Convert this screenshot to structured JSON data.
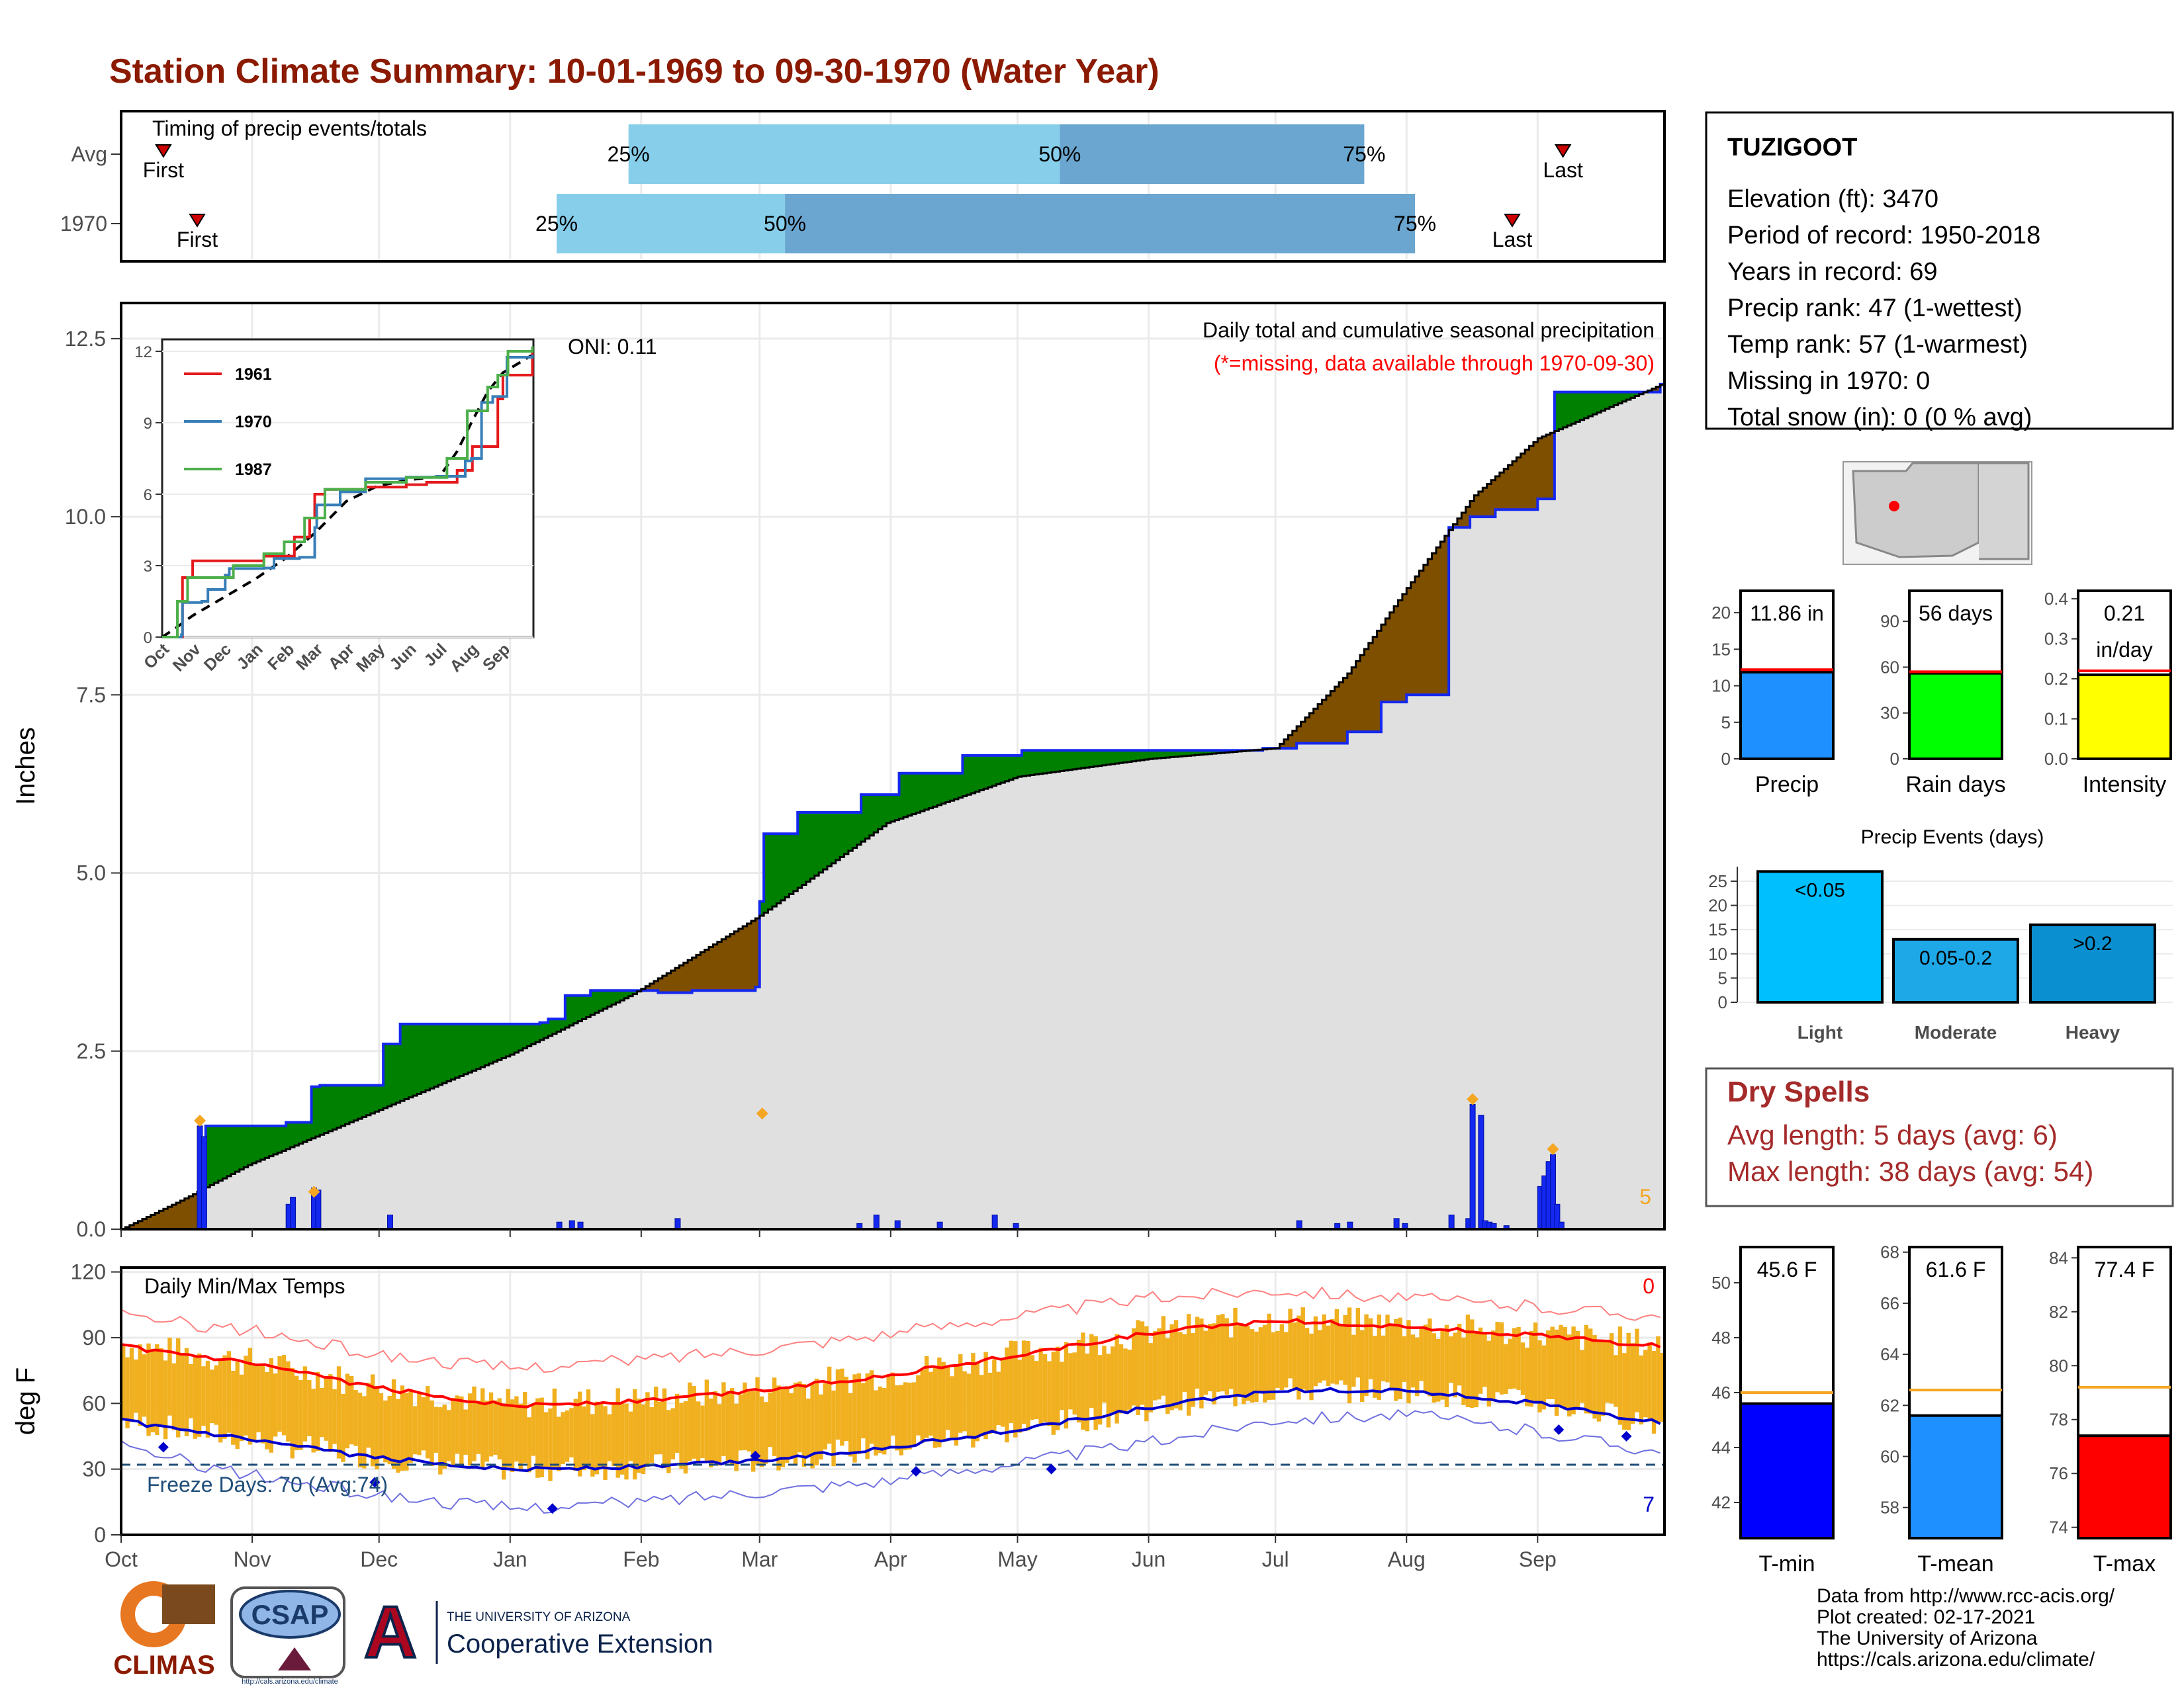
{
  "title": "Station Climate Summary: 10-01-1969 to 09-30-1970 (Water Year)",
  "colors": {
    "title": "#8B1A00",
    "cum_fill": "#e0e0e0",
    "wetter": "#008000",
    "drier": "#7f4f00",
    "bars": "#1428f0",
    "peak": "#f5a623",
    "tmax_avg": "#ff0000",
    "tmin_avg": "#0000cc",
    "temp_bars": "#f0b020",
    "quart_light": "#87ceeb",
    "quart_dark": "#6aa6d0",
    "drytext": "#a52a2a"
  },
  "timing": {
    "title": "Timing of precip events/totals",
    "rows": [
      {
        "label": "Avg",
        "first_label": "First",
        "last_label": "Last",
        "first_day": 10,
        "last_day": 341,
        "q25_day": 120,
        "q50_day": 222,
        "q75_day": 294,
        "q25_label": "25%",
        "q50_label": "50%",
        "q75_label": "75%"
      },
      {
        "label": "1970",
        "first_label": "First",
        "last_label": "Last",
        "first_day": 18,
        "last_day": 329,
        "q25_day": 103,
        "q50_day": 157,
        "q75_day": 306,
        "q25_label": "25%",
        "q50_label": "50%",
        "q75_label": "75%"
      }
    ]
  },
  "precip_panel": {
    "ylabel": "Inches",
    "y_ticks": [
      "0.0",
      "2.5",
      "5.0",
      "7.5",
      "10.0",
      "12.5"
    ],
    "ylim": [
      0,
      13
    ],
    "note1": "Daily total and cumulative seasonal precipitation",
    "note2": "(*=missing, data available through 1970-09-30)",
    "oni": "ONI: 0.11",
    "corner_count": "5"
  },
  "month_labels": [
    "Oct",
    "Nov",
    "Dec",
    "Jan",
    "Feb",
    "Mar",
    "Apr",
    "May",
    "Jun",
    "Jul",
    "Aug",
    "Sep"
  ],
  "month_starts": [
    0,
    31,
    61,
    92,
    123,
    151,
    182,
    212,
    243,
    273,
    304,
    335
  ],
  "inset": {
    "y_ticks": [
      "0",
      "3",
      "6",
      "9",
      "12"
    ],
    "month_labels": [
      "Oct",
      "Nov",
      "Dec",
      "Jan",
      "Feb",
      "Mar",
      "Apr",
      "May",
      "Jun",
      "Jul",
      "Aug",
      "Sep"
    ],
    "legend": [
      {
        "name": "1961",
        "color": "#e41a1c"
      },
      {
        "name": "1970",
        "color": "#377eb8"
      },
      {
        "name": "1987",
        "color": "#4daf4a"
      }
    ]
  },
  "temp_panel": {
    "ylabel": "deg F",
    "title": "Daily Min/Max Temps",
    "y_ticks": [
      "0",
      "30",
      "60",
      "90",
      "120"
    ],
    "ylim": [
      0,
      122
    ],
    "freeze_label": "Freeze Days: 70 (Avg:74)",
    "freeze_line": 32,
    "count_top": "0",
    "count_bottom": "7"
  },
  "chart_data": {
    "type": "area",
    "series": [
      {
        "name": "1970 cumulative precip (in)",
        "x": [
          0,
          19,
          20,
          39,
          45,
          47,
          62,
          66,
          99,
          101,
          105,
          111,
          127,
          135,
          150,
          151,
          152,
          160,
          175,
          184,
          199,
          213,
          240,
          270,
          278,
          290,
          298,
          304,
          314,
          319,
          325,
          335,
          339,
          364
        ],
        "y": [
          0,
          0.1,
          1.45,
          1.5,
          2.0,
          2.02,
          2.6,
          2.88,
          2.9,
          2.95,
          3.28,
          3.35,
          3.32,
          3.35,
          3.4,
          4.6,
          5.55,
          5.85,
          6.1,
          6.4,
          6.65,
          6.72,
          6.72,
          6.75,
          6.82,
          6.98,
          7.4,
          7.5,
          9.85,
          10.0,
          10.1,
          10.25,
          11.75,
          11.86
        ]
      },
      {
        "name": "Average cumulative precip (in)",
        "x": [
          0,
          14,
          30,
          60,
          92,
          121,
          151,
          181,
          212,
          243,
          273,
          290,
          304,
          320,
          335,
          364
        ],
        "y": [
          0.0,
          0.4,
          0.9,
          1.65,
          2.45,
          3.3,
          4.4,
          5.7,
          6.35,
          6.6,
          6.75,
          7.8,
          9.0,
          10.3,
          11.1,
          11.85
        ]
      }
    ],
    "daily_precip": {
      "x": [
        18,
        19,
        39,
        40,
        45,
        46,
        63,
        103,
        106,
        108,
        131,
        174,
        178,
        183,
        193,
        206,
        211,
        278,
        287,
        290,
        301,
        303,
        314,
        318,
        319,
        321,
        322,
        323,
        324,
        327,
        335,
        336,
        337,
        338,
        339,
        340
      ],
      "y": [
        1.45,
        1.3,
        0.35,
        0.45,
        0.58,
        0.55,
        0.2,
        0.1,
        0.12,
        0.1,
        0.15,
        0.08,
        0.2,
        0.12,
        0.1,
        0.2,
        0.08,
        0.12,
        0.08,
        0.1,
        0.15,
        0.08,
        0.2,
        0.15,
        1.75,
        1.6,
        0.12,
        0.1,
        0.08,
        0.05,
        0.6,
        0.75,
        0.95,
        1.05,
        0.35,
        0.1
      ]
    },
    "inset_series": [
      {
        "name": "1961",
        "x": [
          0,
          20,
          30,
          60,
          100,
          130,
          145,
          150,
          160,
          200,
          240,
          260,
          290,
          305,
          330,
          335,
          364
        ],
        "y": [
          0,
          2.5,
          3.2,
          3.2,
          3.4,
          4.2,
          5.0,
          6.0,
          6.2,
          6.3,
          6.4,
          6.5,
          7.0,
          8.0,
          10.0,
          11.0,
          12.0
        ]
      },
      {
        "name": "1970",
        "x": [
          0,
          19,
          20,
          39,
          45,
          62,
          66,
          100,
          110,
          135,
          150,
          152,
          175,
          200,
          240,
          270,
          298,
          304,
          314,
          325,
          339,
          364
        ],
        "y": [
          0,
          0.1,
          1.45,
          1.5,
          2.0,
          2.6,
          2.88,
          2.9,
          3.3,
          3.35,
          4.6,
          5.55,
          6.1,
          6.65,
          6.72,
          6.75,
          7.4,
          7.5,
          9.85,
          10.1,
          11.75,
          11.86
        ]
      },
      {
        "name": "1987",
        "x": [
          0,
          15,
          25,
          70,
          100,
          120,
          140,
          160,
          200,
          240,
          280,
          300,
          320,
          330,
          340,
          364
        ],
        "y": [
          0,
          1.5,
          2.5,
          3.0,
          3.5,
          4.0,
          5.0,
          6.2,
          6.5,
          6.7,
          7.5,
          9.5,
          10.5,
          11.0,
          12.0,
          12.2
        ]
      }
    ],
    "temp_series": {
      "avg_tmax": {
        "x": [
          0,
          31,
          61,
          92,
          123,
          151,
          182,
          212,
          243,
          273,
          304,
          335,
          364
        ],
        "y": [
          86,
          78,
          67,
          59,
          61,
          66,
          73,
          82,
          92,
          98,
          95,
          91,
          86
        ]
      },
      "avg_tmin": {
        "x": [
          0,
          31,
          61,
          92,
          123,
          151,
          182,
          212,
          243,
          273,
          304,
          335,
          364
        ],
        "y": [
          52,
          43,
          35,
          30,
          31,
          34,
          40,
          48,
          58,
          66,
          66,
          60,
          51
        ]
      },
      "rec_max": {
        "x": [
          0,
          31,
          61,
          92,
          123,
          151,
          182,
          212,
          243,
          273,
          304,
          335,
          364
        ],
        "y": [
          100,
          93,
          82,
          76,
          80,
          85,
          92,
          100,
          108,
          112,
          108,
          104,
          100
        ]
      },
      "rec_min": {
        "x": [
          0,
          31,
          61,
          92,
          123,
          151,
          182,
          212,
          243,
          273,
          304,
          335,
          364
        ],
        "y": [
          40,
          27,
          18,
          12,
          15,
          20,
          25,
          33,
          42,
          53,
          55,
          47,
          38
        ]
      }
    }
  },
  "station_info": {
    "name": "TUZIGOOT",
    "lines": [
      "Elevation (ft): 3470",
      "Period of record: 1950-2018",
      "Years in record: 69",
      "Precip rank: 47 (1-wettest)",
      "Temp rank: 57 (1-warmest)",
      "Missing in 1970: 0",
      "Total snow (in): 0 (0 % avg)"
    ]
  },
  "mini_bars": [
    {
      "label": "Precip",
      "value_text": "11.86 in",
      "value": 11.86,
      "avg": 12.2,
      "ymax": 23,
      "ticks": [
        "0",
        "5",
        "10",
        "15",
        "20"
      ],
      "tick_vals": [
        0,
        5,
        10,
        15,
        20
      ],
      "color": "#1e90ff"
    },
    {
      "label": "Rain days",
      "value_text": "56 days",
      "value": 56,
      "avg": 57,
      "ymax": 110,
      "ticks": [
        "0",
        "30",
        "60",
        "90"
      ],
      "tick_vals": [
        0,
        30,
        60,
        90
      ],
      "color": "#00ff00"
    },
    {
      "label": "Intensity",
      "value_text": "0.21",
      "value_text2": "in/day",
      "value": 0.21,
      "avg": 0.22,
      "ymax": 0.42,
      "ticks": [
        "0.0",
        "0.1",
        "0.2",
        "0.3",
        "0.4"
      ],
      "tick_vals": [
        0,
        0.1,
        0.2,
        0.3,
        0.4
      ],
      "color": "#ffff00"
    }
  ],
  "precip_events": {
    "title": "Precip Events (days)",
    "ymax": 28,
    "ticks": [
      "0",
      "5",
      "10",
      "15",
      "20",
      "25"
    ],
    "tick_vals": [
      0,
      5,
      10,
      15,
      20,
      25
    ],
    "bars": [
      {
        "name": "Light",
        "label": "<0.05",
        "value": 27,
        "color": "#00bfff"
      },
      {
        "name": "Moderate",
        "label": "0.05-0.2",
        "value": 13,
        "color": "#1ea8e8"
      },
      {
        "name": "Heavy",
        "label": ">0.2",
        "value": 16,
        "color": "#0a90d0"
      }
    ]
  },
  "dry_spells": {
    "title": "Dry Spells",
    "line1": "Avg length: 5 days (avg: 6)",
    "line2": "Max length: 38 days (avg: 54)"
  },
  "temp_bars": [
    {
      "label": "T-min",
      "value_text": "45.6 F",
      "value": 45.6,
      "avg": 46.0,
      "ymin": 40.7,
      "ymax": 51.3,
      "ticks": [
        "42",
        "44",
        "46",
        "48",
        "50"
      ],
      "tick_vals": [
        42,
        44,
        46,
        48,
        50
      ],
      "color": "#0000ff"
    },
    {
      "label": "T-mean",
      "value_text": "61.6 F",
      "value": 61.6,
      "avg": 62.6,
      "ymin": 56.8,
      "ymax": 68.2,
      "ticks": [
        "58",
        "60",
        "62",
        "64",
        "66",
        "68"
      ],
      "tick_vals": [
        58,
        60,
        62,
        64,
        66,
        68
      ],
      "color": "#1e90ff"
    },
    {
      "label": "T-max",
      "value_text": "77.4 F",
      "value": 77.4,
      "avg": 79.2,
      "ymin": 73.6,
      "ymax": 84.4,
      "ticks": [
        "74",
        "76",
        "78",
        "80",
        "82",
        "84"
      ],
      "tick_vals": [
        74,
        76,
        78,
        80,
        82,
        84
      ],
      "color": "#ff0000"
    }
  ],
  "footer": {
    "lines": [
      "Data from http://www.rcc-acis.org/",
      "Plot created: 02-17-2021",
      "The University of Arizona",
      "https://cals.arizona.edu/climate/"
    ]
  },
  "logos": {
    "climas": "CLIMAS",
    "csap": "CSAP",
    "csap_url": "http://cals.arizona.edu/climate",
    "ua_small": "THE UNIVERSITY OF ARIZONA",
    "coop": "Cooperative Extension"
  }
}
